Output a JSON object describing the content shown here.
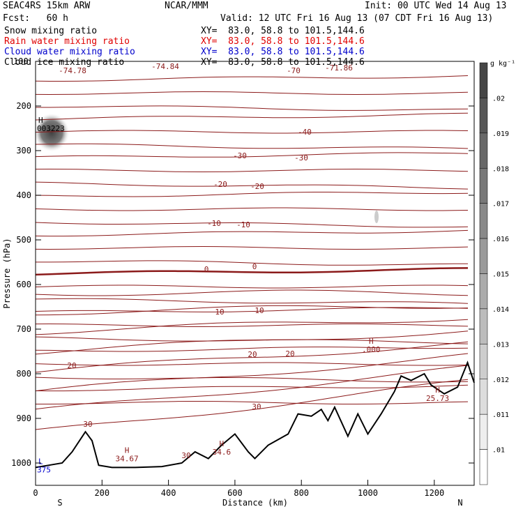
{
  "header": {
    "model": "SEAC4RS 15km ARW",
    "org": "NCAR/MMM",
    "init": "Init: 00 UTC Wed 14 Aug 13",
    "fcst": "Fcst:   60 h",
    "valid": "Valid: 12 UTC Fri 16 Aug 13 (07 CDT Fri 16 Aug 13)",
    "fields": [
      {
        "name": "Snow mixing ratio",
        "xy": "XY=  83.0, 58.8 to 101.5,144.6",
        "color": "#000000"
      },
      {
        "name": "Rain water mixing ratio",
        "xy": "XY=  83.0, 58.8 to 101.5,144.6",
        "color": "#e00000"
      },
      {
        "name": "Cloud water mixing ratio",
        "xy": "XY=  83.0, 58.8 to 101.5,144.6",
        "color": "#0000cc"
      },
      {
        "name": "Cloud ice mixing ratio",
        "xy": "XY=  83.0, 58.8 to 101.5,144.6",
        "color": "#000000"
      }
    ]
  },
  "chart_data": {
    "type": "cross-section contour",
    "xlabel": "Distance (km)",
    "ylabel": "Pressure (hPa)",
    "xlim": [
      0,
      1320
    ],
    "ylim": [
      1050,
      100
    ],
    "x_ticks": [
      "0",
      "200",
      "400",
      "600",
      "800",
      "1000",
      "1200"
    ],
    "y_ticks": [
      "200",
      "300",
      "400",
      "500",
      "600",
      "700",
      "800",
      "900",
      "1000"
    ],
    "y_top_tick": "100",
    "x_end_labels": {
      "left": "S",
      "right": "N"
    },
    "colorbar": {
      "unit": "g kg⁻¹",
      "levels": [
        ".01",
        ".011",
        ".012",
        ".013",
        ".014",
        ".015",
        ".016",
        ".017",
        ".018",
        ".019",
        ".02"
      ]
    },
    "temperature_contour_labels": [
      "-74.78",
      "-74.84",
      "-70",
      "-71.86",
      "-40",
      "-30",
      "-30",
      "-20",
      "-20",
      "-10",
      "-10",
      "0",
      "0",
      "10",
      "10",
      "20",
      "20",
      "20",
      "30",
      "30",
      "30"
    ],
    "extrema": [
      {
        "type": "H",
        "value": "003223",
        "x_km": 0,
        "p_hPa": 250
      },
      {
        "type": "H",
        "value": ".000",
        "x_km": 1010,
        "p_hPa": 745
      },
      {
        "type": "H",
        "value": "34.67",
        "x_km": 275,
        "p_hPa": 990
      },
      {
        "type": "H",
        "value": "34.6",
        "x_km": 560,
        "p_hPa": 975
      },
      {
        "type": "H",
        "value": "25.73",
        "x_km": 1210,
        "p_hPa": 855
      },
      {
        "type": "L",
        "value": "375",
        "x_km": 0,
        "p_hPa": 1015
      }
    ],
    "terrain_surface": [
      {
        "x": 0,
        "p": 1010
      },
      {
        "x": 40,
        "p": 1005
      },
      {
        "x": 80,
        "p": 1000
      },
      {
        "x": 110,
        "p": 975
      },
      {
        "x": 150,
        "p": 930
      },
      {
        "x": 170,
        "p": 950
      },
      {
        "x": 190,
        "p": 1005
      },
      {
        "x": 230,
        "p": 1010
      },
      {
        "x": 300,
        "p": 1010
      },
      {
        "x": 380,
        "p": 1008
      },
      {
        "x": 440,
        "p": 1000
      },
      {
        "x": 480,
        "p": 975
      },
      {
        "x": 520,
        "p": 990
      },
      {
        "x": 560,
        "p": 960
      },
      {
        "x": 600,
        "p": 935
      },
      {
        "x": 640,
        "p": 975
      },
      {
        "x": 660,
        "p": 990
      },
      {
        "x": 700,
        "p": 960
      },
      {
        "x": 760,
        "p": 935
      },
      {
        "x": 790,
        "p": 890
      },
      {
        "x": 830,
        "p": 895
      },
      {
        "x": 860,
        "p": 880
      },
      {
        "x": 880,
        "p": 905
      },
      {
        "x": 900,
        "p": 875
      },
      {
        "x": 940,
        "p": 940
      },
      {
        "x": 970,
        "p": 890
      },
      {
        "x": 1000,
        "p": 935
      },
      {
        "x": 1040,
        "p": 890
      },
      {
        "x": 1080,
        "p": 840
      },
      {
        "x": 1100,
        "p": 805
      },
      {
        "x": 1130,
        "p": 815
      },
      {
        "x": 1170,
        "p": 800
      },
      {
        "x": 1190,
        "p": 825
      },
      {
        "x": 1230,
        "p": 845
      },
      {
        "x": 1270,
        "p": 830
      },
      {
        "x": 1300,
        "p": 775
      },
      {
        "x": 1320,
        "p": 820
      }
    ]
  }
}
